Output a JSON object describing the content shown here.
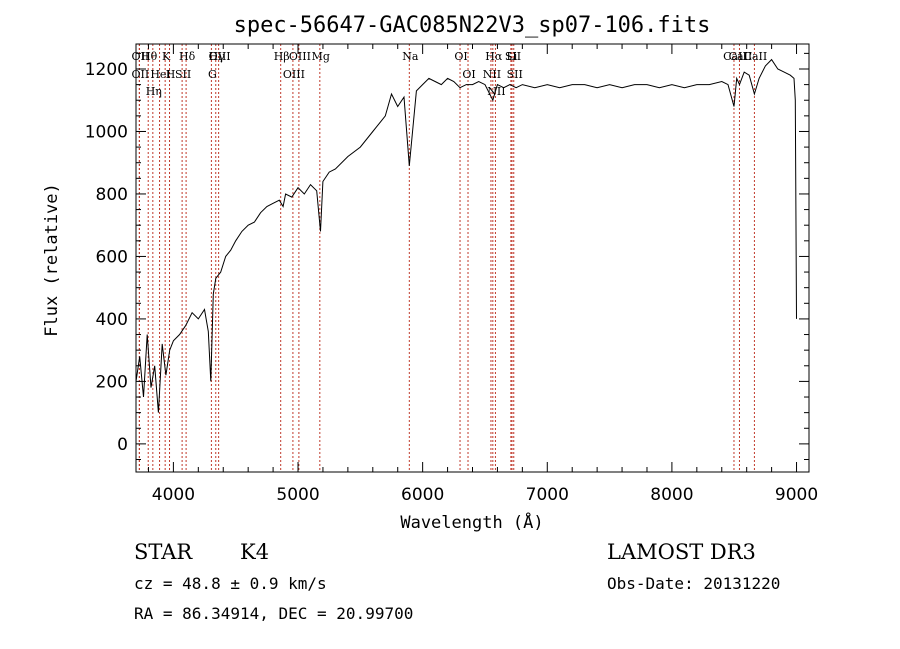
{
  "chart_data": {
    "type": "line",
    "title": "spec-56647-GAC085N22V3_sp07-106.fits",
    "xlabel": "Wavelength (Å)",
    "ylabel": "Flux (relative)",
    "xlim": [
      3700,
      9100
    ],
    "ylim": [
      -90,
      1280
    ],
    "xticks": [
      4000,
      5000,
      6000,
      7000,
      8000,
      9000
    ],
    "yticks": [
      0,
      200,
      400,
      600,
      800,
      1000,
      1200
    ],
    "grid": false,
    "line_color": "#000000",
    "marker_color": "#c0392b",
    "series": [
      {
        "name": "spectrum",
        "x": [
          3700,
          3730,
          3760,
          3790,
          3820,
          3850,
          3880,
          3910,
          3940,
          3970,
          4000,
          4050,
          4100,
          4150,
          4200,
          4250,
          4280,
          4300,
          4320,
          4340,
          4380,
          4420,
          4460,
          4500,
          4550,
          4600,
          4650,
          4700,
          4750,
          4800,
          4850,
          4880,
          4900,
          4950,
          5000,
          5050,
          5100,
          5150,
          5180,
          5200,
          5250,
          5300,
          5400,
          5500,
          5600,
          5700,
          5750,
          5800,
          5850,
          5893,
          5950,
          6000,
          6050,
          6100,
          6150,
          6200,
          6250,
          6300,
          6350,
          6400,
          6450,
          6500,
          6563,
          6600,
          6650,
          6700,
          6750,
          6800,
          6900,
          7000,
          7100,
          7200,
          7300,
          7400,
          7500,
          7600,
          7700,
          7800,
          7900,
          8000,
          8100,
          8200,
          8300,
          8400,
          8450,
          8498,
          8520,
          8542,
          8580,
          8620,
          8662,
          8700,
          8750,
          8800,
          8850,
          8900,
          8950,
          8980,
          8990,
          9000
        ],
        "y": [
          200,
          280,
          150,
          350,
          180,
          250,
          100,
          320,
          220,
          300,
          330,
          350,
          380,
          420,
          400,
          430,
          360,
          200,
          480,
          530,
          550,
          600,
          620,
          650,
          680,
          700,
          710,
          740,
          760,
          770,
          780,
          760,
          800,
          790,
          820,
          800,
          830,
          810,
          680,
          840,
          870,
          880,
          920,
          950,
          1000,
          1050,
          1120,
          1080,
          1110,
          890,
          1130,
          1150,
          1170,
          1160,
          1150,
          1170,
          1160,
          1140,
          1150,
          1150,
          1160,
          1150,
          1100,
          1150,
          1140,
          1150,
          1140,
          1150,
          1140,
          1150,
          1140,
          1150,
          1150,
          1140,
          1150,
          1140,
          1150,
          1150,
          1140,
          1150,
          1140,
          1150,
          1150,
          1160,
          1150,
          1080,
          1170,
          1150,
          1190,
          1180,
          1120,
          1170,
          1210,
          1230,
          1200,
          1190,
          1180,
          1170,
          1100,
          400
        ]
      }
    ],
    "line_markers": [
      {
        "name": "Hθ",
        "x": 3798
      },
      {
        "name": "OII",
        "x": 3727
      },
      {
        "name": "OII",
        "x": 3727
      },
      {
        "name": "K",
        "x": 3934
      },
      {
        "name": "H",
        "x": 3969
      },
      {
        "name": "HeI",
        "x": 3889
      },
      {
        "name": "Hη",
        "x": 3835
      },
      {
        "name": "Hδ",
        "x": 4102
      },
      {
        "name": "SII",
        "x": 4070
      },
      {
        "name": "OIII",
        "x": 4363
      },
      {
        "name": "Hγ",
        "x": 4340
      },
      {
        "name": "G",
        "x": 4305
      },
      {
        "name": "OIII",
        "x": 5007
      },
      {
        "name": "OIII",
        "x": 4959
      },
      {
        "name": "Hβ",
        "x": 4861
      },
      {
        "name": "Mg",
        "x": 5175
      },
      {
        "name": "Na",
        "x": 5893
      },
      {
        "name": "OI",
        "x": 6300
      },
      {
        "name": "OI",
        "x": 6364
      },
      {
        "name": "Hα",
        "x": 6563
      },
      {
        "name": "NII",
        "x": 6548
      },
      {
        "name": "NII",
        "x": 6584
      },
      {
        "name": "SII",
        "x": 6717
      },
      {
        "name": "SII",
        "x": 6731
      },
      {
        "name": "Li",
        "x": 6708
      },
      {
        "name": "CaII",
        "x": 8498
      },
      {
        "name": "CaII",
        "x": 8542
      },
      {
        "name": "CaII",
        "x": 8662
      }
    ]
  },
  "info": {
    "object_class": "STAR",
    "subclass": "K4",
    "survey": "LAMOST DR3",
    "redshift_text": "cz = 48.8 ± 0.9 km/s",
    "obs_date_text": "Obs-Date: 20131220",
    "coords_text": "RA =  86.34914, DEC =  20.99700"
  }
}
